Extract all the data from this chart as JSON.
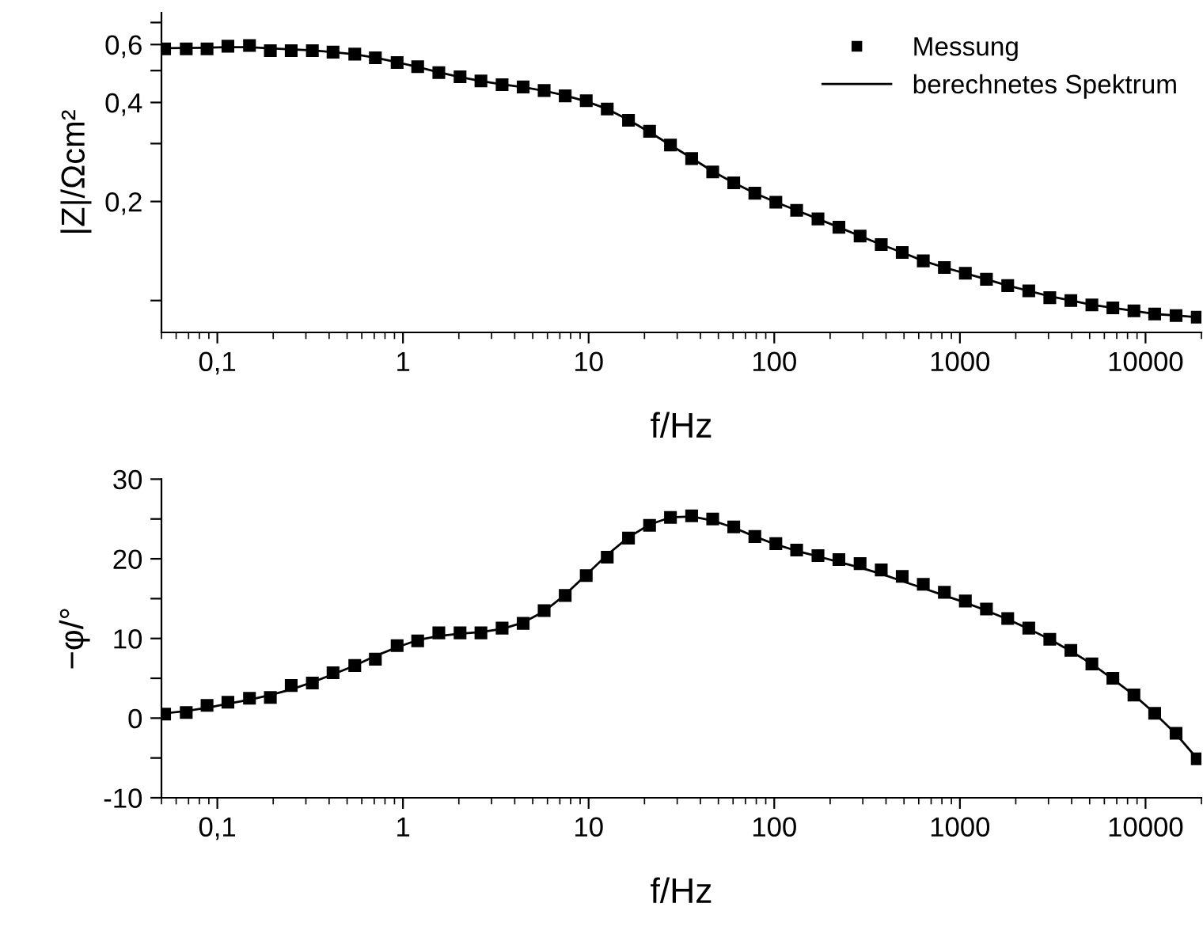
{
  "chart_data": [
    {
      "type": "scatter",
      "xlabel": "f/Hz",
      "ylabel": "|Z|/Ωcm²",
      "log": "xy",
      "legend": "top right",
      "x": [
        0.052,
        0.068,
        0.088,
        0.114,
        0.149,
        0.193,
        0.25,
        0.325,
        0.42,
        0.55,
        0.71,
        0.93,
        1.2,
        1.56,
        2.03,
        2.63,
        3.42,
        4.44,
        5.76,
        7.48,
        9.71,
        12.6,
        16.4,
        21.3,
        27.6,
        35.9,
        46.6,
        60.5,
        78.6,
        102,
        132,
        172,
        223,
        290,
        377,
        489,
        635,
        825,
        1070,
        1390,
        1810,
        2350,
        3050,
        3960,
        5140,
        6670,
        8660,
        11200,
        14600,
        19000
      ],
      "xlim": [
        0.05,
        20000
      ],
      "xticks": [
        {
          "value": 0.1,
          "label": "0,1"
        },
        1,
        10,
        100,
        1000,
        10000
      ],
      "ylim": [
        0.08,
        0.75
      ],
      "yticks": [
        {
          "value": 0.1,
          "label": null
        },
        {
          "value": 0.2,
          "label": "0,2"
        },
        {
          "value": 0.3,
          "label": null
        },
        {
          "value": 0.4,
          "label": "0,4"
        },
        {
          "value": 0.5,
          "label": null
        },
        {
          "value": 0.6,
          "label": "0,6"
        },
        {
          "value": 0.7,
          "label": null
        }
      ],
      "series": [
        {
          "name": "Messung",
          "marker": "square",
          "color": "#000000",
          "values": [
            0.582,
            0.582,
            0.582,
            0.593,
            0.596,
            0.575,
            0.575,
            0.575,
            0.569,
            0.561,
            0.547,
            0.529,
            0.514,
            0.493,
            0.479,
            0.465,
            0.453,
            0.446,
            0.435,
            0.419,
            0.405,
            0.382,
            0.353,
            0.327,
            0.297,
            0.27,
            0.246,
            0.228,
            0.212,
            0.199,
            0.188,
            0.177,
            0.167,
            0.157,
            0.148,
            0.14,
            0.132,
            0.126,
            0.121,
            0.116,
            0.111,
            0.107,
            0.102,
            0.1,
            0.097,
            0.095,
            0.093,
            0.091,
            0.09,
            0.089
          ]
        },
        {
          "name": "berechnetes Spektrum",
          "type": "line",
          "line_style": "solid",
          "color": "#000000",
          "values": [
            0.585,
            0.586,
            0.587,
            0.589,
            0.589,
            0.584,
            0.58,
            0.576,
            0.569,
            0.56,
            0.547,
            0.53,
            0.513,
            0.494,
            0.478,
            0.465,
            0.454,
            0.445,
            0.434,
            0.42,
            0.403,
            0.382,
            0.354,
            0.325,
            0.297,
            0.271,
            0.247,
            0.228,
            0.212,
            0.199,
            0.188,
            0.177,
            0.167,
            0.157,
            0.148,
            0.14,
            0.132,
            0.126,
            0.121,
            0.116,
            0.111,
            0.107,
            0.103,
            0.1,
            0.097,
            0.095,
            0.093,
            0.091,
            0.09,
            0.089
          ]
        }
      ]
    },
    {
      "type": "scatter",
      "xlabel": "f/Hz",
      "ylabel": "−φ/°",
      "log": "x",
      "x": [
        0.052,
        0.068,
        0.088,
        0.114,
        0.149,
        0.193,
        0.25,
        0.325,
        0.42,
        0.55,
        0.71,
        0.93,
        1.2,
        1.56,
        2.03,
        2.63,
        3.42,
        4.44,
        5.76,
        7.48,
        9.71,
        12.6,
        16.4,
        21.3,
        27.6,
        35.9,
        46.6,
        60.5,
        78.6,
        102,
        132,
        172,
        223,
        290,
        377,
        489,
        635,
        825,
        1070,
        1390,
        1810,
        2350,
        3050,
        3960,
        5140,
        6670,
        8660,
        11200,
        14600,
        19000
      ],
      "xlim": [
        0.05,
        20000
      ],
      "xticks": [
        {
          "value": 0.1,
          "label": "0,1"
        },
        1,
        10,
        100,
        1000,
        10000
      ],
      "ylim": [
        -10,
        30
      ],
      "yticks": [
        -10,
        {
          "value": -5,
          "label": null
        },
        0,
        {
          "value": 5,
          "label": null
        },
        10,
        {
          "value": 15,
          "label": null
        },
        20,
        {
          "value": 25,
          "label": null
        },
        30
      ],
      "series": [
        {
          "marker": "square",
          "color": "#000000",
          "values": [
            0.5,
            0.7,
            1.6,
            2.0,
            2.5,
            2.6,
            4.1,
            4.4,
            5.7,
            6.6,
            7.4,
            9.1,
            9.7,
            10.7,
            10.7,
            10.7,
            11.3,
            11.9,
            13.5,
            15.4,
            17.9,
            20.2,
            22.6,
            24.2,
            25.2,
            25.4,
            25.0,
            24.0,
            22.8,
            21.9,
            21.1,
            20.4,
            19.9,
            19.4,
            18.6,
            17.8,
            16.8,
            15.8,
            14.7,
            13.7,
            12.5,
            11.3,
            9.9,
            8.5,
            6.8,
            5.0,
            2.9,
            0.6,
            -1.9,
            -5.1
          ]
        },
        {
          "type": "line",
          "line_style": "solid",
          "color": "#000000",
          "values": [
            0.6,
            0.9,
            1.3,
            1.8,
            2.3,
            2.9,
            3.6,
            4.5,
            5.5,
            6.6,
            7.8,
            8.9,
            9.8,
            10.3,
            10.6,
            10.8,
            11.2,
            12.0,
            13.4,
            15.5,
            18.0,
            20.5,
            22.7,
            24.3,
            25.2,
            25.3,
            24.8,
            23.9,
            22.8,
            21.8,
            21.0,
            20.3,
            19.6,
            18.9,
            18.1,
            17.2,
            16.3,
            15.4,
            14.5,
            13.5,
            12.4,
            11.2,
            9.9,
            8.4,
            6.8,
            4.9,
            2.9,
            0.6,
            -2.0,
            -5.1
          ]
        }
      ]
    }
  ]
}
